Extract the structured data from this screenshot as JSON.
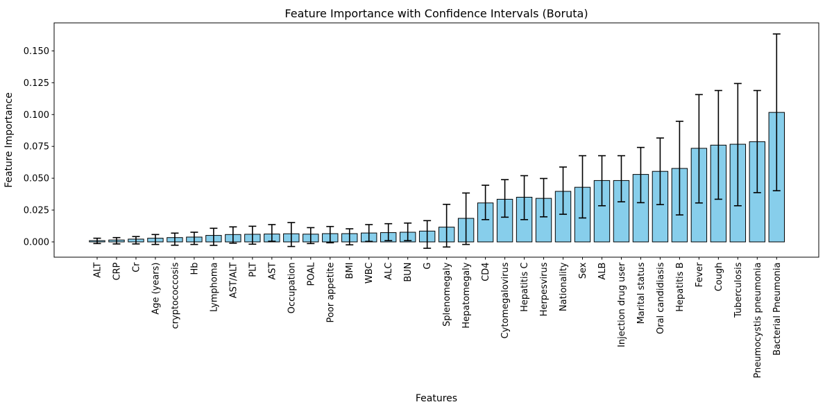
{
  "chart_data": {
    "type": "bar",
    "title": "Feature Importance with Confidence Intervals (Boruta)",
    "xlabel": "Features",
    "ylabel": "Feature Importance",
    "ylim": [
      -0.012,
      0.172
    ],
    "yticks": [
      0.0,
      0.025,
      0.05,
      0.075,
      0.1,
      0.125,
      0.15
    ],
    "grid": false,
    "legend": "none",
    "bar_color": "#87CEEB",
    "bar_edge_color": "#000000",
    "error_color": "#000000",
    "categories": [
      "ALT",
      "CRP",
      "Cr",
      "Age (years)",
      "cryptococcosis",
      "Hb",
      "Lymphoma",
      "AST/ALT",
      "PLT",
      "AST",
      "Occupation",
      "POAL",
      "Poor appetite",
      "BMI",
      "WBC",
      "ALC",
      "BUN",
      "G",
      "Splenomegaly",
      "Hepatomegaly",
      "CD4",
      "Cytomegalovirus",
      "Hepatitis C",
      "Herpesvirus",
      "Nationality",
      "Sex",
      "ALB",
      "Injection drug user",
      "Marital status",
      "Oral candidiasis",
      "Hepatitis B",
      "Fever",
      "Cough",
      "Tuberculosis",
      "Pneumocystis pneumonia",
      "Bacterial Pneumonia"
    ],
    "values": [
      0.001,
      0.0015,
      0.0022,
      0.0029,
      0.0034,
      0.0038,
      0.0051,
      0.0058,
      0.006,
      0.0062,
      0.0064,
      0.0061,
      0.0065,
      0.0065,
      0.007,
      0.0073,
      0.0076,
      0.0085,
      0.0116,
      0.0185,
      0.0306,
      0.0335,
      0.0351,
      0.0342,
      0.0397,
      0.0429,
      0.0482,
      0.0482,
      0.053,
      0.0554,
      0.0577,
      0.0735,
      0.076,
      0.0767,
      0.0787,
      0.1017
    ],
    "ci_low": [
      -0.0013,
      -0.0016,
      -0.0016,
      -0.002,
      -0.0026,
      -0.002,
      -0.0027,
      -0.001,
      -0.0018,
      0.0005,
      -0.0036,
      -0.0013,
      -0.0007,
      -0.0023,
      0.0004,
      0.001,
      0.001,
      -0.005,
      -0.004,
      -0.002,
      0.0175,
      0.0194,
      0.0175,
      0.0197,
      0.0217,
      0.0188,
      0.0284,
      0.0315,
      0.0308,
      0.0293,
      0.0212,
      0.0306,
      0.0335,
      0.0284,
      0.0387,
      0.0402
    ],
    "ci_high": [
      0.0029,
      0.0034,
      0.0042,
      0.0058,
      0.0069,
      0.0076,
      0.0107,
      0.0118,
      0.0123,
      0.0136,
      0.0152,
      0.0112,
      0.0121,
      0.0103,
      0.0136,
      0.0143,
      0.0148,
      0.0167,
      0.0295,
      0.0384,
      0.0445,
      0.0489,
      0.052,
      0.0498,
      0.0588,
      0.0677,
      0.0677,
      0.0677,
      0.0742,
      0.0816,
      0.0947,
      0.1157,
      0.1189,
      0.1244,
      0.1189,
      0.1633
    ]
  }
}
